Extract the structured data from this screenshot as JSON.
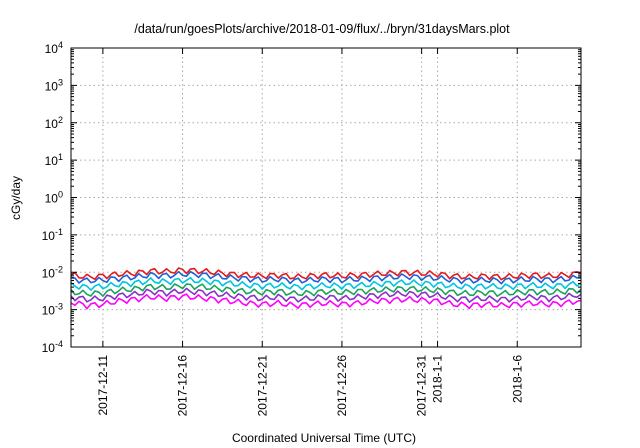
{
  "chart_data": {
    "type": "line",
    "title": "/data/run/goesPlots/archive/2018-01-09/flux/../bryn/31daysMars.plot",
    "xlabel": "Coordinated Universal Time (UTC)",
    "ylabel": "cGy/day",
    "yscale": "log",
    "ylim": [
      0.0001,
      10000
    ],
    "xlim": [
      "2017-12-09",
      "2018-01-10"
    ],
    "grid": true,
    "ytick_labels": [
      {
        "base": "10",
        "exp": "-4"
      },
      {
        "base": "10",
        "exp": "-3"
      },
      {
        "base": "10",
        "exp": "-2"
      },
      {
        "base": "10",
        "exp": "-1"
      },
      {
        "base": "10",
        "exp": "0"
      },
      {
        "base": "10",
        "exp": "1"
      },
      {
        "base": "10",
        "exp": "2"
      },
      {
        "base": "10",
        "exp": "3"
      },
      {
        "base": "10",
        "exp": "4"
      }
    ],
    "xticks": [
      {
        "date": "2017-12-11",
        "label": "2017-12-11"
      },
      {
        "date": "2017-12-16",
        "label": "2017-12-16"
      },
      {
        "date": "2017-12-21",
        "label": "2017-12-21"
      },
      {
        "date": "2017-12-26",
        "label": "2017-12-26"
      },
      {
        "date": "2017-12-31",
        "label": "2017-12-31"
      },
      {
        "date": "2018-01-01",
        "label": "2018-1-1"
      },
      {
        "date": "2018-01-06",
        "label": "2018-1-6"
      }
    ],
    "x": [
      "2017-12-09",
      "2017-12-10",
      "2017-12-11",
      "2017-12-12",
      "2017-12-13",
      "2017-12-14",
      "2017-12-15",
      "2017-12-16",
      "2017-12-17",
      "2017-12-18",
      "2017-12-19",
      "2017-12-20",
      "2017-12-21",
      "2017-12-22",
      "2017-12-23",
      "2017-12-24",
      "2017-12-25",
      "2017-12-26",
      "2017-12-27",
      "2017-12-28",
      "2017-12-29",
      "2017-12-30",
      "2017-12-31",
      "2018-01-01",
      "2018-01-02",
      "2018-01-03",
      "2018-01-04",
      "2018-01-05",
      "2018-01-06",
      "2018-01-07",
      "2018-01-08",
      "2018-01-09",
      "2018-01-10"
    ],
    "series": [
      {
        "color": "#e41a1c",
        "values": [
          0.0085,
          0.0075,
          0.008,
          0.009,
          0.0095,
          0.011,
          0.0105,
          0.0115,
          0.011,
          0.01,
          0.009,
          0.0085,
          0.008,
          0.0085,
          0.0075,
          0.008,
          0.0085,
          0.008,
          0.0085,
          0.009,
          0.0095,
          0.01,
          0.0095,
          0.009,
          0.008,
          0.0075,
          0.008,
          0.0075,
          0.008,
          0.0085,
          0.008,
          0.0085,
          0.0095
        ]
      },
      {
        "color": "#1f5fd6",
        "values": [
          0.0065,
          0.006,
          0.0062,
          0.007,
          0.0075,
          0.0085,
          0.0082,
          0.009,
          0.0088,
          0.008,
          0.0072,
          0.0068,
          0.0063,
          0.0066,
          0.006,
          0.0062,
          0.0066,
          0.0063,
          0.0066,
          0.007,
          0.0074,
          0.0078,
          0.0074,
          0.007,
          0.0063,
          0.006,
          0.0063,
          0.006,
          0.0063,
          0.0066,
          0.0063,
          0.0066,
          0.0074
        ]
      },
      {
        "color": "#00c4e0",
        "values": [
          0.0045,
          0.004,
          0.0042,
          0.0048,
          0.0052,
          0.006,
          0.0056,
          0.0062,
          0.006,
          0.0055,
          0.005,
          0.0046,
          0.0043,
          0.0045,
          0.0041,
          0.0042,
          0.0045,
          0.0043,
          0.0045,
          0.0048,
          0.0051,
          0.0054,
          0.0051,
          0.0048,
          0.0043,
          0.0041,
          0.0043,
          0.0041,
          0.0043,
          0.0045,
          0.0043,
          0.0045,
          0.0051
        ]
      },
      {
        "color": "#1aa35a",
        "values": [
          0.003,
          0.0027,
          0.0028,
          0.0033,
          0.0036,
          0.0042,
          0.0039,
          0.0044,
          0.0042,
          0.0038,
          0.0034,
          0.0031,
          0.0029,
          0.0031,
          0.0027,
          0.0028,
          0.0031,
          0.0029,
          0.0031,
          0.0033,
          0.0035,
          0.0037,
          0.0035,
          0.0033,
          0.0029,
          0.0027,
          0.0029,
          0.0027,
          0.0029,
          0.0031,
          0.0029,
          0.0031,
          0.0035
        ]
      },
      {
        "color": "#8b2fc9",
        "values": [
          0.0022,
          0.0019,
          0.002,
          0.0024,
          0.0026,
          0.0031,
          0.0028,
          0.0032,
          0.003,
          0.0027,
          0.0024,
          0.0022,
          0.002,
          0.0022,
          0.0019,
          0.002,
          0.0022,
          0.002,
          0.0022,
          0.0024,
          0.0026,
          0.0027,
          0.0026,
          0.0024,
          0.002,
          0.0019,
          0.002,
          0.0019,
          0.002,
          0.0022,
          0.002,
          0.0022,
          0.0026
        ]
      },
      {
        "color": "#ff00ff",
        "values": [
          0.0016,
          0.0013,
          0.0014,
          0.0017,
          0.0019,
          0.0022,
          0.002,
          0.0023,
          0.0021,
          0.0019,
          0.0017,
          0.0015,
          0.0014,
          0.0015,
          0.0013,
          0.0014,
          0.0015,
          0.0014,
          0.0015,
          0.0017,
          0.0018,
          0.0019,
          0.0018,
          0.0017,
          0.0014,
          0.0013,
          0.0014,
          0.0013,
          0.0014,
          0.0015,
          0.0014,
          0.0015,
          0.0018
        ]
      }
    ]
  }
}
